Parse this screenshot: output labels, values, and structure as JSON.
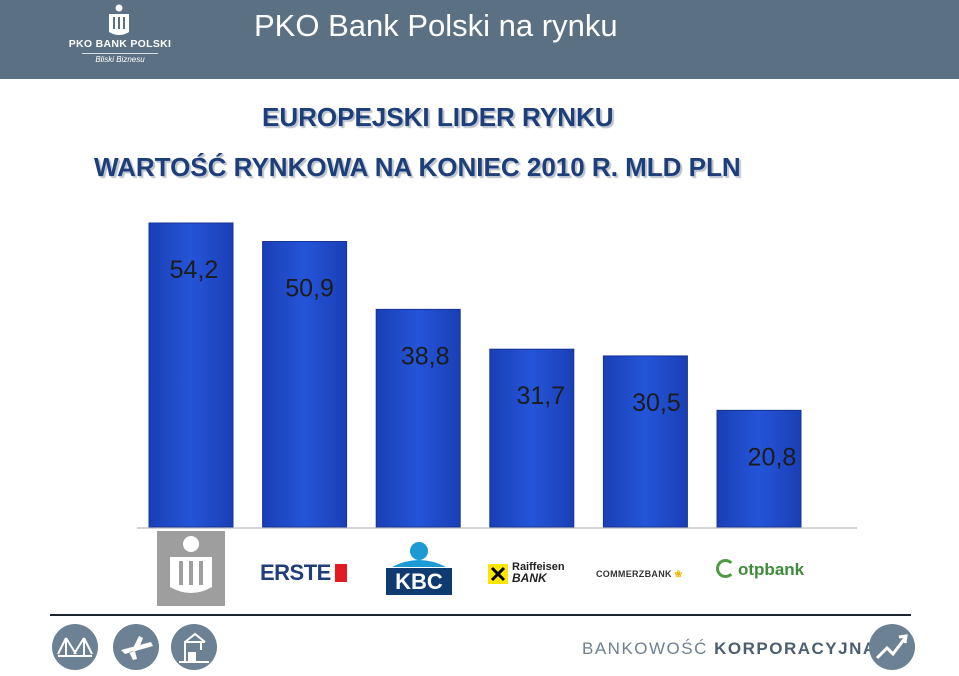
{
  "header": {
    "title": "PKO Bank Polski na rynku",
    "logo_name": "PKO BANK POLSKI",
    "logo_tagline": "Bliski Biznesu"
  },
  "subtitle_1": "EUROPEJSKI LIDER RYNKU",
  "subtitle_2": "WARTOŚĆ RYNKOWA NA KONIEC 2010 R. MLD PLN",
  "chart_data": {
    "type": "bar",
    "title": "WARTOŚĆ RYNKOWA NA KONIEC 2010 R. MLD PLN",
    "categories": [
      "PKO Bank Polski",
      "Erste",
      "KBC",
      "Raiffeisen Bank",
      "Commerzbank",
      "OTP Bank"
    ],
    "values": [
      54.2,
      50.9,
      38.8,
      31.7,
      30.5,
      20.8
    ],
    "value_labels": [
      "54,2",
      "50,9",
      "38,8",
      "31,7",
      "30,5",
      "20,8"
    ],
    "ylim": [
      0,
      54.2
    ],
    "grid": false,
    "bar_color": "#1f45c9"
  },
  "bank_logos": {
    "erste": "ERSTE",
    "kbc": "KBC",
    "raiffeisen_line1": "Raiffeisen",
    "raiffeisen_line2": "BANK",
    "commerzbank": "COMMERZBANK",
    "otp": "otpbank"
  },
  "footer": {
    "brand_light": "BANKOWOŚĆ",
    "brand_strong": "KORPORACYJNA",
    "icons": [
      "bridge-icon",
      "airplane-icon",
      "port-crane-icon",
      "growth-arrow-icon"
    ]
  }
}
